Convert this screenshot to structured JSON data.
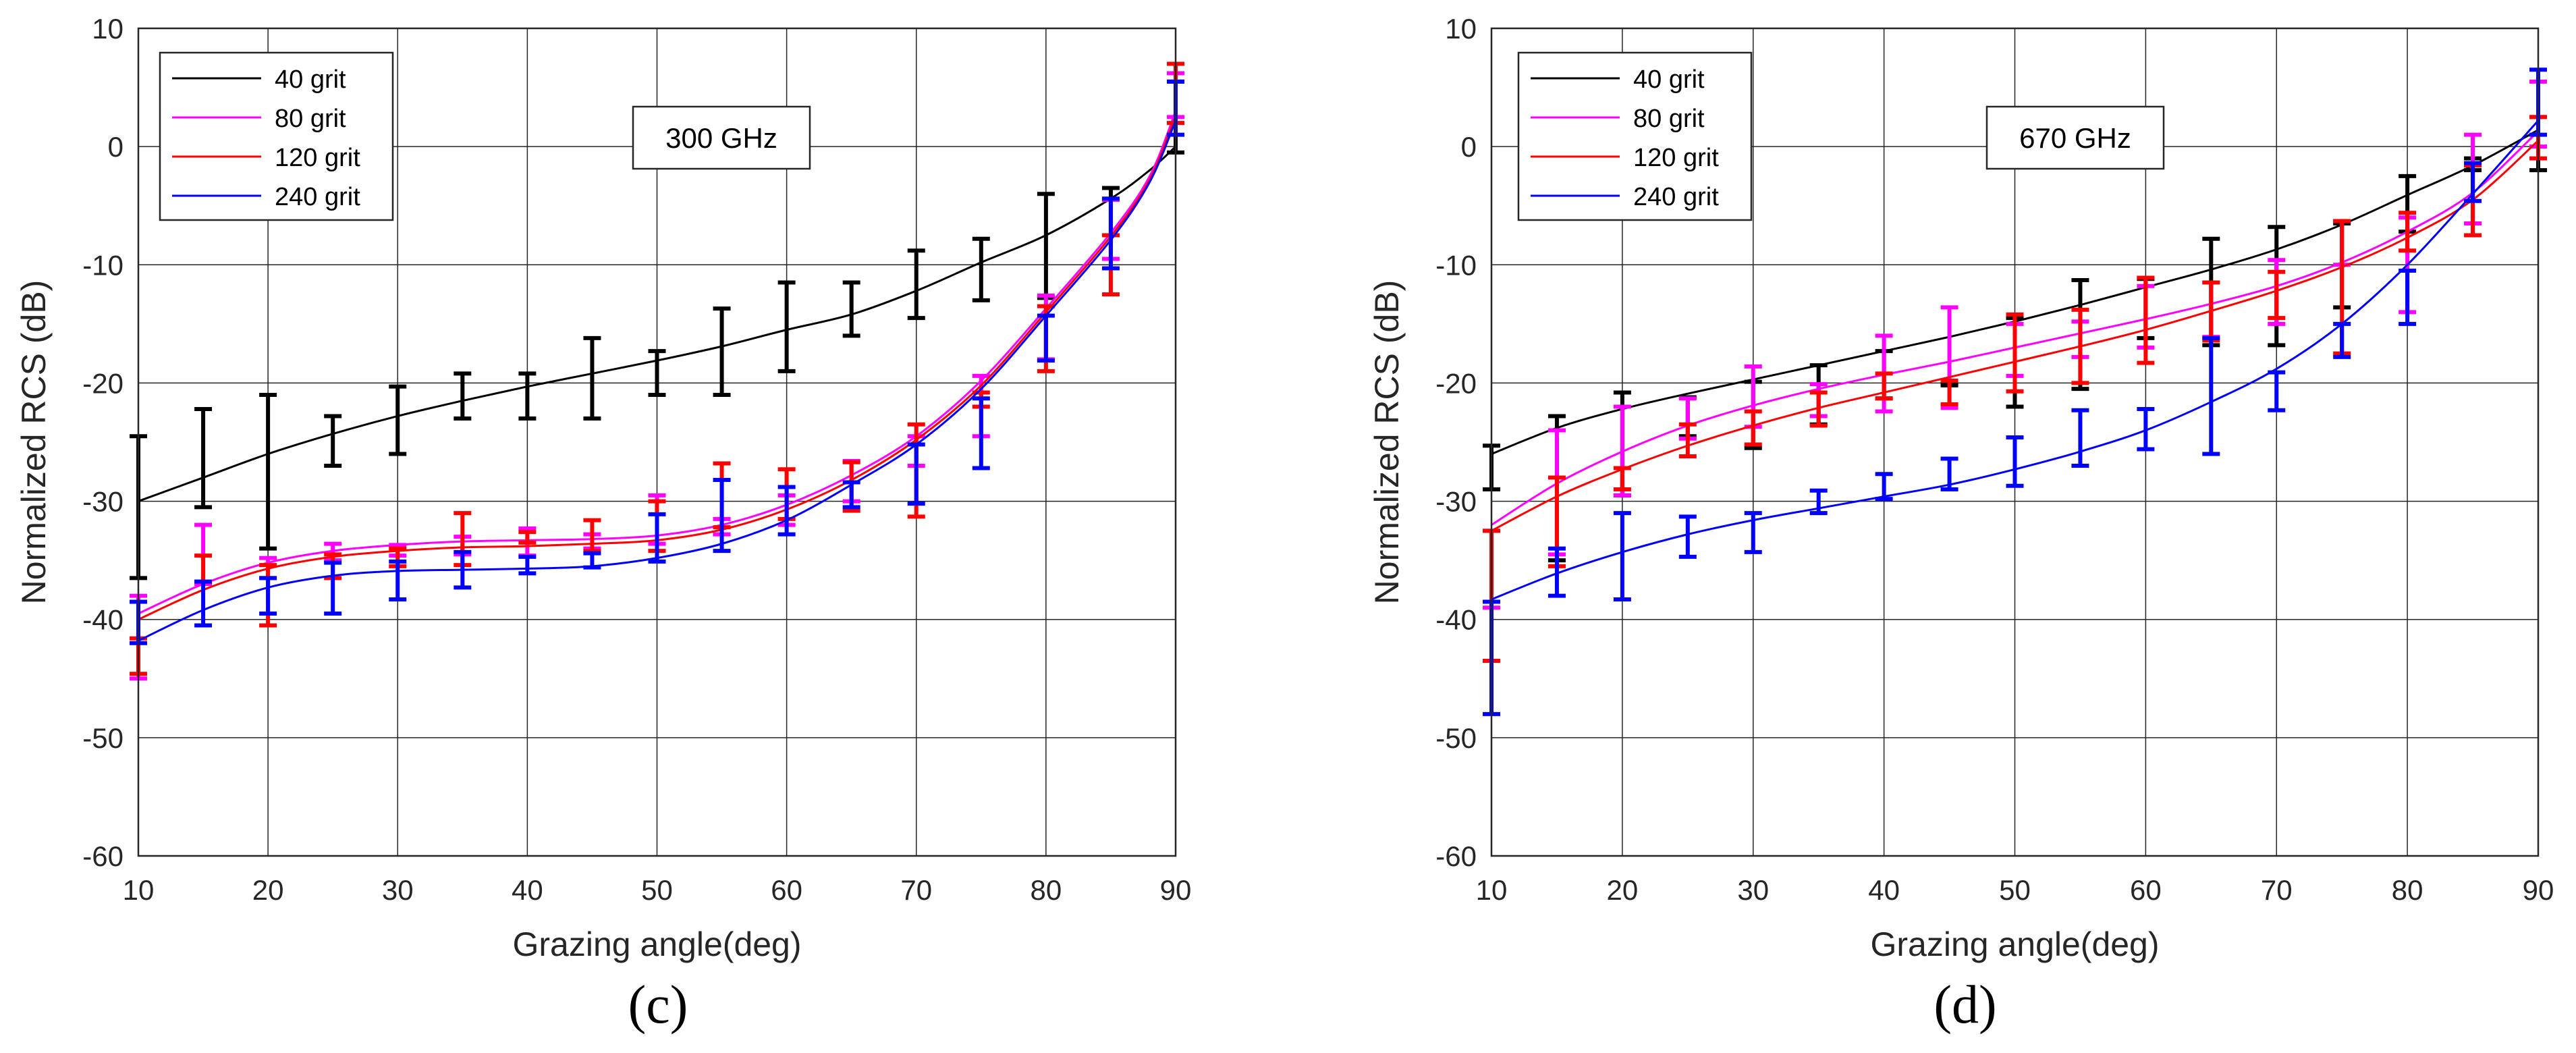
{
  "figure": {
    "panels": [
      {
        "panel_label": "(c)",
        "note": "300 GHz"
      },
      {
        "panel_label": "(d)",
        "note": "670 GHz"
      }
    ]
  },
  "chart_data": [
    {
      "type": "line",
      "title": "",
      "annotation": "300 GHz",
      "xlabel": "Grazing angle(deg)",
      "ylabel": "Normalized RCS (dB)",
      "xlim": [
        10,
        90
      ],
      "ylim": [
        -60,
        10
      ],
      "xticks": [
        10,
        20,
        30,
        40,
        50,
        60,
        70,
        80,
        90
      ],
      "yticks": [
        -60,
        -50,
        -40,
        -30,
        -20,
        -10,
        0,
        10
      ],
      "grid": true,
      "legend_position": "top-left",
      "series": [
        {
          "name": "40 grit",
          "color": "#000000",
          "curve_x": [
            10,
            15,
            20,
            25,
            30,
            35,
            40,
            45,
            50,
            55,
            60,
            65,
            70,
            75,
            80,
            85,
            88,
            90
          ],
          "curve_y": [
            -30,
            -28,
            -26,
            -24.3,
            -22.8,
            -21.5,
            -20.3,
            -19.2,
            -18.1,
            -16.9,
            -15.5,
            -14.2,
            -12.2,
            -9.8,
            -7.5,
            -4.4,
            -2.0,
            0
          ],
          "err_x": [
            10,
            15,
            20,
            25,
            30,
            35,
            40,
            45,
            50,
            55,
            60,
            65,
            70,
            75,
            80,
            85,
            90
          ],
          "err_low": [
            -36.5,
            -30.5,
            -34,
            -27,
            -26,
            -23,
            -23,
            -23,
            -21,
            -21,
            -19,
            -16,
            -14.5,
            -13,
            -12.8,
            -7.5,
            -0.5
          ],
          "err_high": [
            -24.5,
            -22.2,
            -21,
            -22.8,
            -20.3,
            -19.2,
            -19.2,
            -16.2,
            -17.3,
            -13.7,
            -11.5,
            -11.5,
            -8.8,
            -7.8,
            -4,
            -3.5,
            5.5
          ]
        },
        {
          "name": "80 grit",
          "color": "#ff00ff",
          "curve_x": [
            10,
            15,
            20,
            25,
            30,
            35,
            40,
            45,
            50,
            55,
            60,
            65,
            70,
            75,
            80,
            85,
            88,
            90
          ],
          "curve_y": [
            -39.5,
            -37,
            -35.2,
            -34.2,
            -33.7,
            -33.4,
            -33.3,
            -33.2,
            -32.9,
            -32.0,
            -30.3,
            -27.8,
            -24.5,
            -19.8,
            -13.7,
            -7.3,
            -2.5,
            3.0
          ],
          "err_x": [
            10,
            15,
            20,
            25,
            30,
            35,
            40,
            45,
            50,
            55,
            60,
            65,
            70,
            75,
            80,
            85,
            90
          ],
          "err_low": [
            -45,
            -37,
            -36.5,
            -35,
            -34.6,
            -34.5,
            -34.6,
            -34,
            -33.6,
            -32.8,
            -32,
            -30,
            -27,
            -24.5,
            -18,
            -9.5,
            2.5
          ],
          "err_high": [
            -38,
            -32,
            -34.8,
            -33.6,
            -33.7,
            -33,
            -32.3,
            -32.8,
            -29.5,
            -31.5,
            -29.5,
            -26.6,
            -24.5,
            -19.4,
            -12.6,
            -4.5,
            6.2
          ]
        },
        {
          "name": "120 grit",
          "color": "#ff0000",
          "curve_x": [
            10,
            15,
            20,
            25,
            30,
            35,
            40,
            45,
            50,
            55,
            60,
            65,
            70,
            75,
            80,
            85,
            88,
            90
          ],
          "curve_y": [
            -40,
            -37.5,
            -35.7,
            -34.7,
            -34.2,
            -33.9,
            -33.8,
            -33.6,
            -33.3,
            -32.4,
            -30.7,
            -28.2,
            -24.8,
            -20.2,
            -14.0,
            -7.6,
            -2.8,
            2.6
          ],
          "err_x": [
            10,
            15,
            20,
            25,
            30,
            35,
            40,
            45,
            50,
            55,
            60,
            65,
            70,
            75,
            80,
            85,
            90
          ],
          "err_low": [
            -44.6,
            -36.8,
            -40.5,
            -36.5,
            -35.5,
            -35.4,
            -33.5,
            -34.2,
            -34.2,
            -32.2,
            -31.5,
            -30.8,
            -31.3,
            -22,
            -19,
            -12.5,
            2
          ],
          "err_high": [
            -41.6,
            -34.6,
            -35.4,
            -34.5,
            -34,
            -31,
            -32.6,
            -31.6,
            -30,
            -26.8,
            -27.3,
            -26.7,
            -23.5,
            -20.8,
            -13.5,
            -7.5,
            7
          ]
        },
        {
          "name": "240 grit",
          "color": "#0000ff",
          "curve_x": [
            10,
            15,
            20,
            25,
            30,
            35,
            40,
            45,
            50,
            55,
            60,
            65,
            70,
            75,
            80,
            85,
            88,
            90
          ],
          "curve_y": [
            -41.8,
            -39.2,
            -37.3,
            -36.3,
            -35.9,
            -35.8,
            -35.7,
            -35.5,
            -34.8,
            -33.6,
            -31.6,
            -28.6,
            -25.2,
            -20.5,
            -14.3,
            -7.9,
            -3.0,
            2.2
          ],
          "err_x": [
            10,
            15,
            20,
            25,
            30,
            35,
            40,
            45,
            50,
            55,
            60,
            65,
            70,
            75,
            80,
            85,
            90
          ],
          "err_low": [
            -42,
            -40.5,
            -39.5,
            -39.5,
            -38.3,
            -37.3,
            -36.1,
            -35.6,
            -35.1,
            -34.2,
            -32.8,
            -30.5,
            -30.2,
            -27.2,
            -18.1,
            -10.3,
            1
          ],
          "err_high": [
            -38.5,
            -36.8,
            -36.5,
            -35.2,
            -35.1,
            -34.3,
            -34.7,
            -34.4,
            -31.1,
            -28.2,
            -28.8,
            -28.4,
            -25.2,
            -21.3,
            -14.3,
            -4.4,
            5.5
          ]
        }
      ]
    },
    {
      "type": "line",
      "title": "",
      "annotation": "670 GHz",
      "xlabel": "Grazing angle(deg)",
      "ylabel": "Normalized RCS (dB)",
      "xlim": [
        10,
        90
      ],
      "ylim": [
        -60,
        10
      ],
      "xticks": [
        10,
        20,
        30,
        40,
        50,
        60,
        70,
        80,
        90
      ],
      "yticks": [
        -60,
        -50,
        -40,
        -30,
        -20,
        -10,
        0,
        10
      ],
      "grid": true,
      "legend_position": "top-left",
      "series": [
        {
          "name": "40 grit",
          "color": "#000000",
          "curve_x": [
            10,
            15,
            20,
            25,
            30,
            35,
            40,
            45,
            50,
            55,
            60,
            65,
            70,
            75,
            80,
            85,
            90
          ],
          "curve_y": [
            -26,
            -23.8,
            -22.2,
            -20.9,
            -19.7,
            -18.5,
            -17.3,
            -16.1,
            -14.8,
            -13.4,
            -11.9,
            -10.4,
            -8.7,
            -6.6,
            -4.1,
            -1.6,
            1.4
          ],
          "err_x": [
            10,
            15,
            20,
            25,
            30,
            35,
            40,
            45,
            50,
            55,
            60,
            65,
            70,
            75,
            80,
            85,
            90
          ],
          "err_low": [
            -29,
            -35,
            -29.5,
            -24.5,
            -25.5,
            -23.5,
            -21.3,
            -20.2,
            -22,
            -20.5,
            -16.2,
            -16.8,
            -16.8,
            -13.6,
            -7.2,
            -2,
            -2
          ],
          "err_high": [
            -25.3,
            -22.8,
            -20.8,
            -21.2,
            -19.9,
            -18.5,
            -17.3,
            -20.1,
            -14.5,
            -11.3,
            -11.2,
            -7.8,
            -6.8,
            -6.5,
            -2.5,
            -1,
            2.5
          ]
        },
        {
          "name": "80 grit",
          "color": "#ff00ff",
          "curve_x": [
            10,
            15,
            20,
            25,
            30,
            35,
            40,
            45,
            50,
            55,
            60,
            65,
            70,
            75,
            80,
            85,
            90
          ],
          "curve_y": [
            -32,
            -28.5,
            -25.8,
            -23.6,
            -21.9,
            -20.5,
            -19.3,
            -18.2,
            -17.0,
            -15.8,
            -14.6,
            -13.3,
            -11.8,
            -9.8,
            -7.2,
            -3.9,
            1.3
          ],
          "err_x": [
            10,
            15,
            20,
            25,
            30,
            35,
            40,
            45,
            50,
            55,
            60,
            65,
            70,
            75,
            80,
            85,
            90
          ],
          "err_low": [
            -39,
            -34.5,
            -29.5,
            -24.7,
            -23.7,
            -22.8,
            -22.4,
            -22.1,
            -19.4,
            -17.8,
            -17,
            -16.1,
            -15,
            -10,
            -14,
            -6.5,
            0
          ],
          "err_high": [
            -32.5,
            -24,
            -22,
            -21.3,
            -18.6,
            -20.1,
            -16,
            -13.6,
            -15,
            -14.8,
            -11.8,
            -11.5,
            -9.6,
            -6.3,
            -6,
            1,
            5.5
          ]
        },
        {
          "name": "120 grit",
          "color": "#ff0000",
          "curve_x": [
            10,
            15,
            20,
            25,
            30,
            35,
            40,
            45,
            50,
            55,
            60,
            65,
            70,
            75,
            80,
            85,
            90
          ],
          "curve_y": [
            -32.5,
            -29.6,
            -27.3,
            -25.3,
            -23.6,
            -22.1,
            -20.8,
            -19.5,
            -18.2,
            -16.9,
            -15.5,
            -13.9,
            -12.2,
            -10.2,
            -7.7,
            -4.5,
            0.5
          ],
          "err_x": [
            10,
            15,
            20,
            25,
            30,
            35,
            40,
            45,
            50,
            55,
            60,
            65,
            70,
            75,
            80,
            85,
            90
          ],
          "err_low": [
            -43.5,
            -35.5,
            -29,
            -26.2,
            -25.2,
            -23.6,
            -21.3,
            -21.8,
            -20.7,
            -20,
            -18.3,
            -16.4,
            -14.5,
            -17.5,
            -8.8,
            -7.5,
            -1
          ],
          "err_high": [
            -32.5,
            -28,
            -27.2,
            -23.5,
            -22.4,
            -20.8,
            -19.2,
            -19.8,
            -14.2,
            -13.8,
            -11.1,
            -11.5,
            -10.6,
            -6.3,
            -5.6,
            -1.6,
            2.5
          ]
        },
        {
          "name": "240 grit",
          "color": "#0000ff",
          "curve_x": [
            10,
            15,
            20,
            25,
            30,
            35,
            40,
            45,
            50,
            55,
            60,
            65,
            70,
            75,
            80,
            85,
            90
          ],
          "curve_y": [
            -38.3,
            -36.1,
            -34.3,
            -32.8,
            -31.6,
            -30.6,
            -29.6,
            -28.6,
            -27.3,
            -25.8,
            -24.0,
            -21.6,
            -18.8,
            -15.0,
            -10.0,
            -4.0,
            2.2
          ],
          "err_x": [
            10,
            15,
            20,
            25,
            30,
            35,
            40,
            45,
            50,
            55,
            60,
            65,
            70,
            75,
            80,
            85,
            90
          ],
          "err_low": [
            -48,
            -38,
            -38.3,
            -34.7,
            -34.3,
            -31,
            -29.8,
            -29,
            -28.7,
            -27,
            -25.6,
            -26,
            -22.3,
            -17.8,
            -15,
            -4.6,
            1
          ],
          "err_high": [
            -38.5,
            -34,
            -31,
            -31.3,
            -31,
            -29.1,
            -27.7,
            -26.4,
            -24.6,
            -22.3,
            -22.2,
            -16.2,
            -19.1,
            -15,
            -10.5,
            -1.4,
            6.5
          ]
        }
      ]
    }
  ]
}
